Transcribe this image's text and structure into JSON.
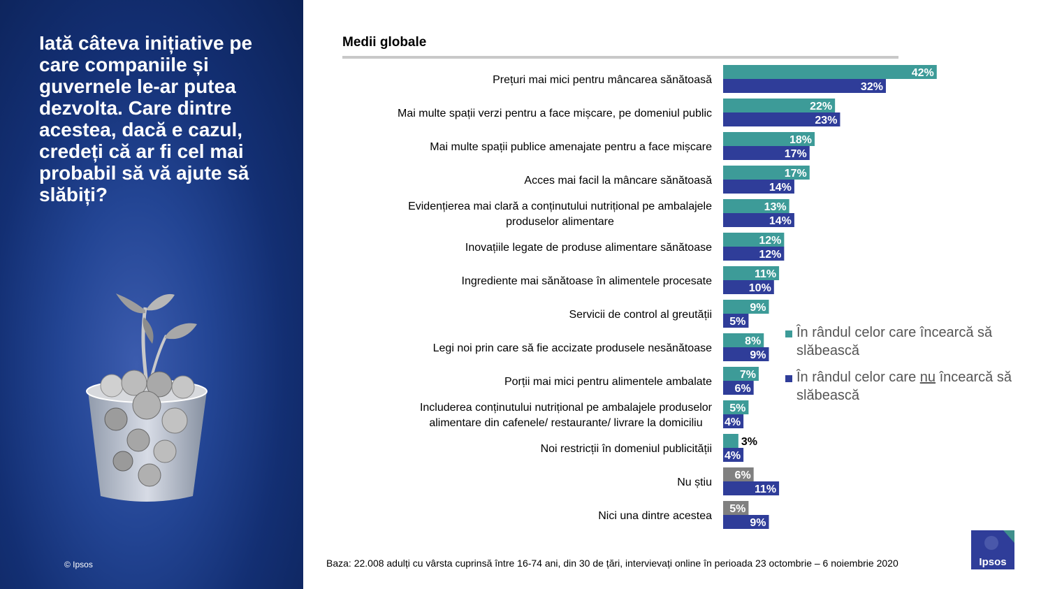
{
  "left_panel": {
    "question": "Iată câteva inițiative pe care companiile și guvernele le-ar putea dezvolta. Care dintre acestea, dacă e cazul, credeți că ar fi cel mai probabil să vă ajute să slăbiți?",
    "copyright": "© Ipsos"
  },
  "colors": {
    "series_trying": "#3d9b98",
    "series_not_trying": "#2f3d99",
    "gray": "#808080"
  },
  "chart_data": {
    "type": "bar",
    "orientation": "horizontal",
    "title": "Medii globale",
    "categories": [
      "Prețuri mai mici pentru mâncarea sănătoasă",
      "Mai multe spații verzi pentru a face mișcare, pe domeniul public",
      "Mai multe spații publice amenajate pentru a face mișcare",
      "Acces mai facil la mâncare sănătoasă",
      "Evidențierea mai clară a conținutului nutrițional pe ambalajele produselor alimentare",
      "Inovațiile legate de produse alimentare sănătoase",
      "Ingrediente mai sănătoase în alimentele procesate",
      "Servicii de control al greutății",
      "Legi noi prin care să fie accizate produsele nesănătoase",
      "Porții mai mici pentru alimentele ambalate",
      "Includerea conținutului nutrițional pe ambalajele produselor alimentare din cafenele/ restaurante/ livrare la domiciliu",
      "Noi restricții în domeniul publicității",
      "Nu știu",
      "Nici una dintre acestea"
    ],
    "category_lines": [
      [
        "Prețuri mai mici pentru mâncarea sănătoasă"
      ],
      [
        "Mai multe spații verzi pentru a face mișcare, pe domeniul public"
      ],
      [
        "Mai multe spații publice amenajate pentru a face mișcare"
      ],
      [
        "Acces mai facil la mâncare sănătoasă"
      ],
      [
        "Evidențierea mai clară a conținutului nutrițional pe ambalajele",
        "produselor alimentare"
      ],
      [
        "Inovațiile legate de produse alimentare sănătoase"
      ],
      [
        "Ingrediente mai sănătoase în alimentele procesate"
      ],
      [
        "Servicii de control al greutății"
      ],
      [
        "Legi noi prin care să fie accizate produsele nesănătoase"
      ],
      [
        "Porții mai mici pentru alimentele ambalate"
      ],
      [
        "Includerea conținutului nutrițional pe ambalajele produselor",
        "alimentare din cafenele/ restaurante/ livrare la domiciliu"
      ],
      [
        "Noi restricții în domeniul publicității"
      ],
      [
        "Nu știu"
      ],
      [
        "Nici una dintre acestea"
      ]
    ],
    "series": [
      {
        "name": "În rândul celor care încearcă să slăbească",
        "values": [
          42,
          22,
          18,
          17,
          13,
          12,
          11,
          9,
          8,
          7,
          5,
          3,
          6,
          5
        ],
        "labels": [
          "42%",
          "22%",
          "18%",
          "17%",
          "13%",
          "12%",
          "11%",
          "9%",
          "8%",
          "7%",
          "5%",
          "3%",
          "6%",
          "5%"
        ]
      },
      {
        "name": "În rândul celor care nu încearcă să slăbească",
        "values": [
          32,
          23,
          17,
          14,
          14,
          12,
          10,
          5,
          9,
          6,
          4,
          4,
          11,
          9
        ],
        "labels": [
          "32%",
          "23%",
          "17%",
          "14%",
          "14%",
          "12%",
          "10%",
          "5%",
          "9%",
          "6%",
          "4%",
          "4%",
          "11%",
          "9%"
        ]
      }
    ],
    "gray_first_series_categories": [
      "Nu știu",
      "Nici una dintre acestea"
    ],
    "xlim": [
      0,
      50
    ],
    "legend_position": "right"
  },
  "legend": {
    "items": [
      {
        "text": "În rândul celor care încearcă să slăbească"
      },
      {
        "before": "În rândul celor care ",
        "emph": "nu",
        "after": " încearcă să slăbească"
      }
    ]
  },
  "footer": {
    "base_note": "Baza: 22.008 adulți cu vârsta cuprinsă între 16-74 ani, din 30 de țări, intervievați online în perioada 23 octombrie – 6 noiembrie 2020",
    "logo_text": "Ipsos"
  }
}
